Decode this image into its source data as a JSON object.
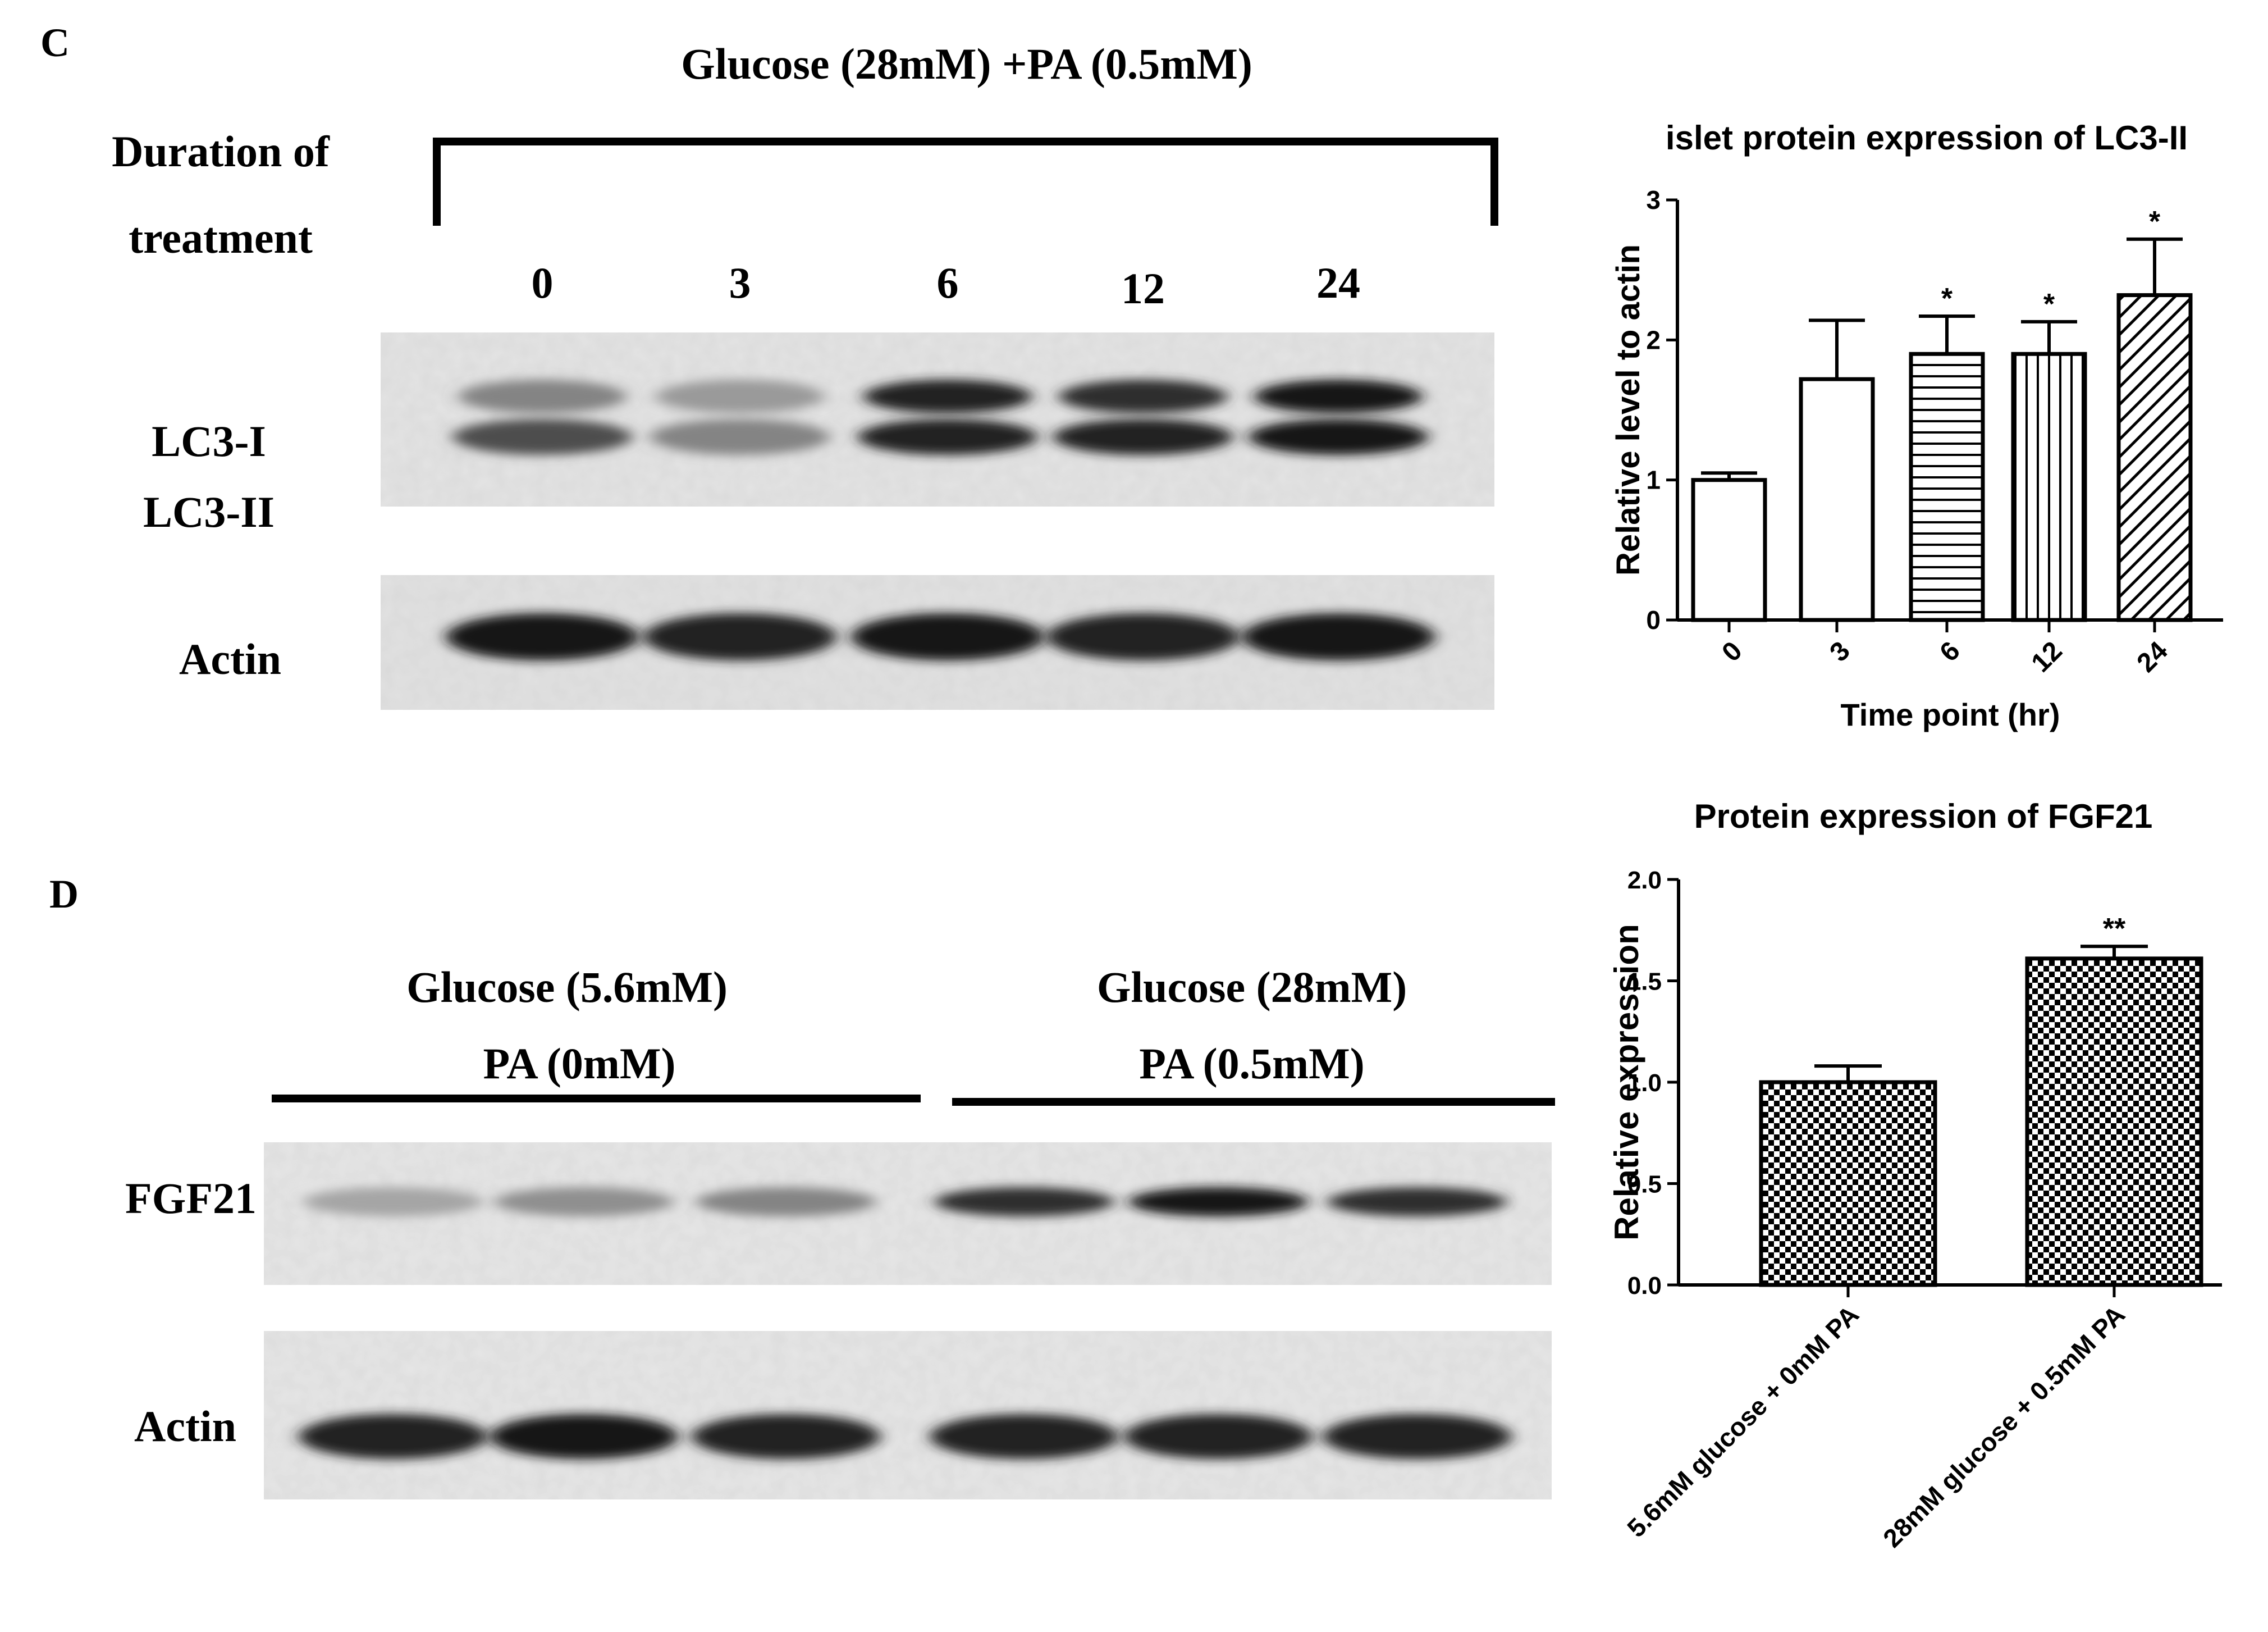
{
  "panel_c": {
    "letter": "C",
    "title": "Glucose (28mM) +PA (0.5mM)",
    "duration_line1": "Duration of",
    "duration_line2": "treatment",
    "lane_labels": [
      "0",
      "3",
      "6",
      "12",
      "24"
    ],
    "band_label_lc3i": "LC3-I",
    "band_label_lc3ii": "LC3-II",
    "band_label_actin": "Actin",
    "blot_lc3": {
      "upper_band_intensity": [
        0.45,
        0.35,
        0.9,
        0.85,
        0.95
      ],
      "lower_band_intensity": [
        0.7,
        0.45,
        0.9,
        0.9,
        0.95
      ]
    },
    "blot_actin": {
      "band_intensity": [
        0.95,
        0.9,
        0.95,
        0.9,
        0.95
      ]
    }
  },
  "panel_d": {
    "letter": "D",
    "group1_line1": "Glucose (5.6mM)",
    "group1_line2": "PA (0mM)",
    "group2_line1": "Glucose (28mM)",
    "group2_line2": "PA (0.5mM)",
    "band_label_fgf21": "FGF21",
    "band_label_actin": "Actin",
    "blot_fgf21": {
      "band_intensity": [
        0.3,
        0.4,
        0.45,
        0.85,
        0.95,
        0.85
      ]
    },
    "blot_actin": {
      "band_intensity": [
        0.9,
        0.95,
        0.9,
        0.9,
        0.9,
        0.9
      ]
    }
  },
  "chart_data": [
    {
      "type": "bar",
      "title": "islet protein expression of LC3-II",
      "xlabel": "Time point (hr)",
      "ylabel": "Relative level to actin",
      "categories": [
        "0",
        "3",
        "6",
        "12",
        "24"
      ],
      "values": [
        1.0,
        1.72,
        1.9,
        1.9,
        2.32
      ],
      "errors": [
        0.05,
        0.42,
        0.27,
        0.23,
        0.4
      ],
      "patterns": [
        "none",
        "none",
        "horizontal",
        "vertical",
        "diagonal"
      ],
      "annotations": [
        "",
        "",
        "*",
        "*",
        "*"
      ],
      "ylim": [
        0,
        3
      ],
      "yticks": [
        "0",
        "1",
        "2",
        "3"
      ],
      "grid": false,
      "legend": "none"
    },
    {
      "type": "bar",
      "title": "Protein expression of FGF21",
      "xlabel": "",
      "ylabel": "Relative expression",
      "categories": [
        "5.6mM glucose + 0mM PA",
        "28mM glucose + 0.5mM PA"
      ],
      "values": [
        1.0,
        1.61
      ],
      "errors": [
        0.08,
        0.06
      ],
      "patterns": [
        "checker",
        "checker"
      ],
      "annotations": [
        "",
        "**"
      ],
      "ylim": [
        0,
        2.0
      ],
      "yticks": [
        "0.0",
        "0.5",
        "1.0",
        "1.5",
        "2.0"
      ],
      "grid": false,
      "legend": "none"
    }
  ]
}
